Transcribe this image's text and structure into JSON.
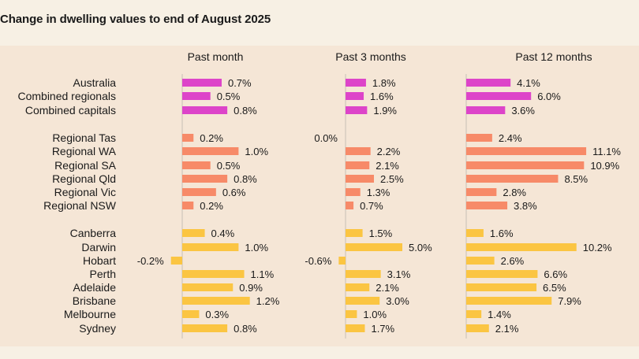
{
  "title": "Change in dwelling values to end of August 2025",
  "colors": {
    "national": "#dd44c9",
    "regional": "#f78a68",
    "capitals": "#fbc542",
    "panel": "#f5e6d6",
    "page": "#f7f0e4",
    "axis": "#c8c0b6"
  },
  "chart_data": {
    "type": "bar",
    "orientation": "horizontal",
    "title": "Change in dwelling values to end of August 2025",
    "unit": "%",
    "categories": [
      "Australia",
      "Combined regionals",
      "Combined capitals",
      "Regional Tas",
      "Regional WA",
      "Regional SA",
      "Regional Qld",
      "Regional Vic",
      "Regional NSW",
      "Canberra",
      "Darwin",
      "Hobart",
      "Perth",
      "Adelaide",
      "Brisbane",
      "Melbourne",
      "Sydney"
    ],
    "groups": [
      {
        "name": "national",
        "color": "#dd44c9",
        "members": [
          "Australia",
          "Combined regionals",
          "Combined capitals"
        ]
      },
      {
        "name": "regional",
        "color": "#f78a68",
        "members": [
          "Regional Tas",
          "Regional WA",
          "Regional SA",
          "Regional Qld",
          "Regional Vic",
          "Regional NSW"
        ]
      },
      {
        "name": "capitals",
        "color": "#fbc542",
        "members": [
          "Canberra",
          "Darwin",
          "Hobart",
          "Perth",
          "Adelaide",
          "Brisbane",
          "Melbourne",
          "Sydney"
        ]
      }
    ],
    "series": [
      {
        "name": "Past month",
        "values": [
          0.7,
          0.5,
          0.8,
          0.2,
          1.0,
          0.5,
          0.8,
          0.6,
          0.2,
          0.4,
          1.0,
          -0.2,
          1.1,
          0.9,
          1.2,
          0.3,
          0.8
        ],
        "labels": [
          "0.7%",
          "0.5%",
          "0.8%",
          "0.2%",
          "1.0%",
          "0.5%",
          "0.8%",
          "0.6%",
          "0.2%",
          "0.4%",
          "1.0%",
          "-0.2%",
          "1.1%",
          "0.9%",
          "1.2%",
          "0.3%",
          "0.8%"
        ]
      },
      {
        "name": "Past 3 months",
        "values": [
          1.8,
          1.6,
          1.9,
          0.0,
          2.2,
          2.1,
          2.5,
          1.3,
          0.7,
          1.5,
          5.0,
          -0.6,
          3.1,
          2.1,
          3.0,
          1.0,
          1.7
        ],
        "labels": [
          "1.8%",
          "1.6%",
          "1.9%",
          "0.0%",
          "2.2%",
          "2.1%",
          "2.5%",
          "1.3%",
          "0.7%",
          "1.5%",
          "5.0%",
          "-0.6%",
          "3.1%",
          "2.1%",
          "3.0%",
          "1.0%",
          "1.7%"
        ]
      },
      {
        "name": "Past 12 months",
        "values": [
          4.1,
          6.0,
          3.6,
          2.4,
          11.1,
          10.9,
          8.5,
          2.8,
          3.8,
          1.6,
          10.2,
          2.6,
          6.6,
          6.5,
          7.9,
          1.4,
          2.1
        ],
        "labels": [
          "4.1%",
          "6.0%",
          "3.6%",
          "2.4%",
          "11.1%",
          "10.9%",
          "8.5%",
          "2.8%",
          "3.8%",
          "1.6%",
          "10.2%",
          "2.6%",
          "6.6%",
          "6.5%",
          "7.9%",
          "1.4%",
          "2.1%"
        ]
      }
    ]
  }
}
